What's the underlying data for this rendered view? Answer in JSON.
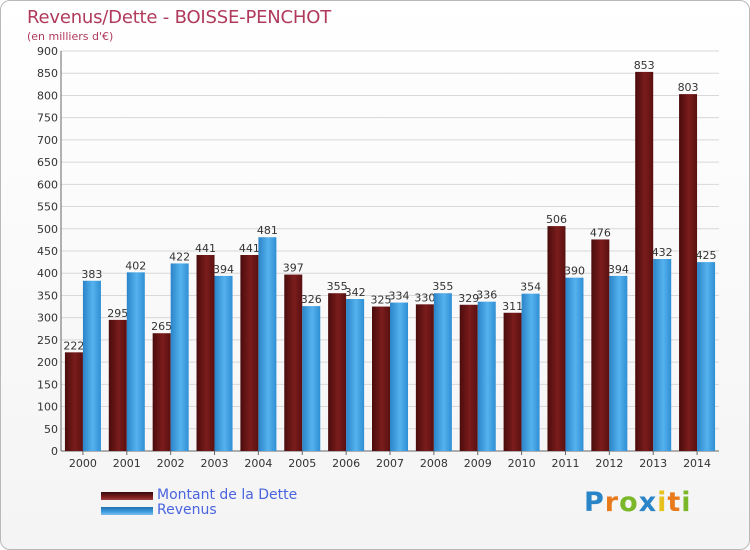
{
  "title": "Revenus/Dette - BOISSE-PENCHOT",
  "subtitle": "(en milliers d'€)",
  "logo": [
    "P",
    "r",
    "o",
    "x",
    "i",
    "t",
    "i"
  ],
  "colors": {
    "dette": "#7b1c1c",
    "revenus": "#3f9ee0",
    "grid": "#d8d8d8",
    "axis_text": "#333333"
  },
  "legend": {
    "dette_label": "Montant de la Dette",
    "revenus_label": "Revenus"
  },
  "chart_data": {
    "type": "bar",
    "title": "Revenus/Dette - BOISSE-PENCHOT",
    "ylabel": "(en milliers d'€)",
    "xlabel": "",
    "ylim": [
      0,
      900
    ],
    "ytick_step": 50,
    "grid": true,
    "categories": [
      "2000",
      "2001",
      "2002",
      "2003",
      "2004",
      "2005",
      "2006",
      "2007",
      "2008",
      "2009",
      "2010",
      "2011",
      "2012",
      "2013",
      "2014"
    ],
    "series": [
      {
        "name": "Montant de la Dette",
        "values": [
          222,
          295,
          265,
          441,
          441,
          397,
          355,
          325,
          330,
          329,
          311,
          506,
          476,
          853,
          803
        ]
      },
      {
        "name": "Revenus",
        "values": [
          383,
          402,
          422,
          394,
          481,
          326,
          342,
          334,
          355,
          336,
          354,
          390,
          394,
          432,
          425
        ]
      }
    ]
  }
}
